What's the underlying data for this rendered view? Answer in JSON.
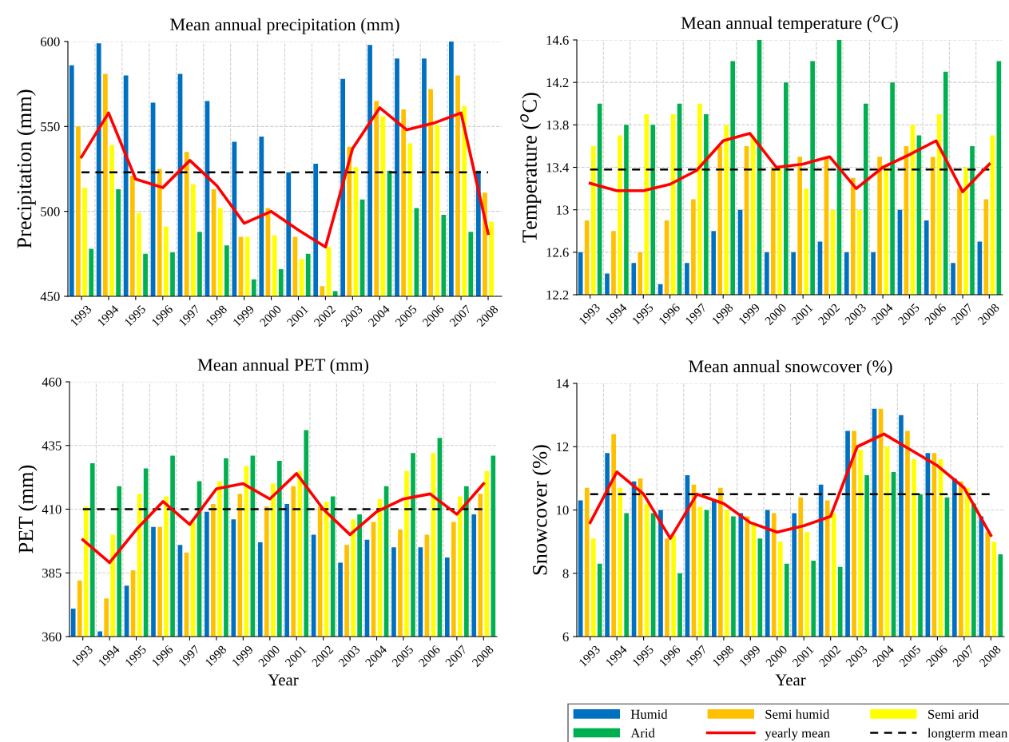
{
  "chart_data": [
    {
      "type": "bar",
      "title": "Mean annual precipitation (mm)",
      "ylabel": "Precipitation (mm)",
      "categories": [
        "1993",
        "1994",
        "1995",
        "1996",
        "1997",
        "1998",
        "1999",
        "2000",
        "2001",
        "2002",
        "2003",
        "2004",
        "2005",
        "2006",
        "2007",
        "2008"
      ],
      "ylim": [
        450,
        600
      ],
      "yticks": [
        450,
        500,
        550,
        600
      ],
      "grid": true,
      "series": [
        {
          "color": "#0070c0",
          "values": [
            586,
            599,
            580,
            564,
            581,
            565,
            541,
            544,
            523,
            528,
            578,
            598,
            590,
            590,
            600,
            524
          ]
        },
        {
          "color": "#ffc000",
          "values": [
            550,
            581,
            521,
            525,
            535,
            513,
            485,
            502,
            485,
            456,
            538,
            565,
            560,
            572,
            580,
            511
          ]
        },
        {
          "color": "#ffff00",
          "values": [
            514,
            539,
            499,
            491,
            516,
            502,
            485,
            486,
            472,
            479,
            526,
            556,
            540,
            551,
            562,
            494
          ]
        },
        {
          "color": "#00b050",
          "values": [
            478,
            513,
            475,
            476,
            488,
            480,
            460,
            466,
            475,
            453,
            507,
            524,
            502,
            498,
            488,
            null
          ]
        },
        {
          "type": "line",
          "color": "#ff0000",
          "values": [
            532,
            558,
            519,
            514,
            530,
            515,
            493,
            500,
            489,
            479,
            537,
            561,
            548,
            552,
            558,
            487
          ]
        }
      ],
      "ref_lines": [
        {
          "axis": "y",
          "value": 523,
          "color": "#000000",
          "line_style": "dashed"
        }
      ]
    },
    {
      "type": "bar",
      "title": "Mean annual temperature ($^{o}$C)",
      "ylabel": "Temperature ($^{o}$C)",
      "categories": [
        "1993",
        "1994",
        "1995",
        "1996",
        "1997",
        "1998",
        "1999",
        "2000",
        "2001",
        "2002",
        "2003",
        "2004",
        "2005",
        "2006",
        "2007",
        "2008"
      ],
      "ylim": [
        12.2,
        14.6
      ],
      "yticks": [
        12.2,
        12.6,
        13,
        13.4,
        13.8,
        14.2,
        14.6
      ],
      "grid": true,
      "series": [
        {
          "color": "#0070c0",
          "values": [
            12.6,
            12.4,
            12.5,
            12.3,
            12.5,
            12.8,
            13.0,
            12.6,
            12.6,
            12.7,
            12.6,
            12.6,
            13.0,
            12.9,
            12.5,
            12.7
          ]
        },
        {
          "color": "#ffc000",
          "values": [
            12.9,
            12.8,
            12.6,
            12.9,
            13.1,
            13.6,
            13.6,
            13.4,
            13.5,
            13.5,
            13.3,
            13.5,
            13.6,
            13.5,
            13.2,
            13.1
          ]
        },
        {
          "color": "#ffff00",
          "values": [
            13.6,
            13.7,
            13.9,
            13.9,
            14.0,
            13.8,
            13.7,
            13.4,
            13.2,
            13.0,
            13.0,
            13.4,
            13.8,
            13.9,
            13.4,
            13.7
          ]
        },
        {
          "color": "#00b050",
          "values": [
            14.0,
            13.8,
            13.8,
            14.0,
            13.9,
            14.4,
            14.6,
            14.2,
            14.4,
            14.6,
            14.0,
            14.2,
            13.7,
            14.3,
            13.6,
            14.4
          ]
        },
        {
          "type": "line",
          "color": "#ff0000",
          "values": [
            13.25,
            13.18,
            13.18,
            13.24,
            13.37,
            13.65,
            13.72,
            13.4,
            13.43,
            13.5,
            13.2,
            13.4,
            13.52,
            13.65,
            13.17,
            13.43
          ]
        }
      ],
      "ref_lines": [
        {
          "axis": "y",
          "value": 13.38,
          "color": "#000000",
          "line_style": "dashed"
        }
      ]
    },
    {
      "type": "bar",
      "title": "Mean annual PET (mm)",
      "ylabel": "PET (mm)",
      "xlabel": "Year",
      "categories": [
        "1993",
        "1994",
        "1995",
        "1996",
        "1997",
        "1998",
        "1999",
        "2000",
        "2001",
        "2002",
        "2003",
        "2004",
        "2005",
        "2006",
        "2007",
        "2008"
      ],
      "ylim": [
        360,
        460
      ],
      "yticks": [
        360,
        385,
        410,
        435,
        460
      ],
      "grid": true,
      "series": [
        {
          "color": "#0070c0",
          "values": [
            371,
            362,
            380,
            403,
            396,
            409,
            406,
            397,
            412,
            400,
            389,
            398,
            395,
            395,
            391,
            408
          ]
        },
        {
          "color": "#ffc000",
          "values": [
            382,
            375,
            386,
            403,
            393,
            412,
            416,
            411,
            419,
            411,
            396,
            405,
            402,
            400,
            405,
            416
          ]
        },
        {
          "color": "#ffff00",
          "values": [
            411,
            400,
            416,
            415,
            405,
            421,
            427,
            420,
            425,
            413,
            406,
            414,
            425,
            432,
            415,
            425
          ]
        },
        {
          "color": "#00b050",
          "values": [
            428,
            419,
            426,
            431,
            421,
            430,
            431,
            429,
            441,
            415,
            408,
            419,
            432,
            438,
            419,
            431
          ]
        },
        {
          "type": "line",
          "color": "#ff0000",
          "values": [
            398,
            389,
            402,
            413,
            404,
            418,
            420,
            414,
            424,
            410,
            400,
            409,
            414,
            416,
            408,
            420
          ]
        }
      ],
      "ref_lines": [
        {
          "axis": "y",
          "value": 410,
          "color": "#000000",
          "line_style": "dashed"
        }
      ]
    },
    {
      "type": "bar",
      "title": "Mean annual snowcover (%)",
      "ylabel": "Snowcover (%)",
      "xlabel": "Year",
      "categories": [
        "1993",
        "1994",
        "1995",
        "1996",
        "1997",
        "1998",
        "1999",
        "2000",
        "2001",
        "2002",
        "2003",
        "2004",
        "2005",
        "2006",
        "2007",
        "2008"
      ],
      "ylim": [
        6,
        14
      ],
      "yticks": [
        6,
        8,
        10,
        12,
        14
      ],
      "grid": true,
      "legend": "bottom",
      "series": [
        {
          "name": "Humid",
          "color": "#0070c0",
          "values": [
            10.3,
            11.8,
            10.9,
            10.0,
            11.1,
            10.3,
            9.9,
            10.0,
            9.9,
            10.8,
            12.5,
            13.2,
            13.0,
            11.8,
            11.0,
            9.8
          ]
        },
        {
          "name": "Semi humid",
          "color": "#ffc000",
          "values": [
            10.7,
            12.4,
            11.0,
            9.1,
            10.8,
            10.7,
            9.8,
            9.9,
            10.4,
            10.3,
            12.5,
            13.2,
            12.5,
            11.8,
            10.9,
            9.3
          ]
        },
        {
          "name": "Semi arid",
          "color": "#ffff00",
          "values": [
            9.1,
            10.7,
            10.2,
            9.2,
            10.1,
            10.0,
            9.6,
            9.0,
            9.3,
            9.9,
            11.9,
            12.0,
            11.6,
            11.6,
            10.7,
            9.0
          ]
        },
        {
          "name": "Arid",
          "color": "#00b050",
          "values": [
            8.3,
            9.9,
            9.9,
            8.0,
            10.0,
            9.8,
            9.1,
            8.3,
            8.4,
            8.2,
            11.1,
            11.2,
            10.5,
            10.4,
            10.2,
            8.6
          ]
        },
        {
          "name": "yearly mean",
          "type": "line",
          "color": "#ff0000",
          "values": [
            9.6,
            11.2,
            10.5,
            9.1,
            10.5,
            10.2,
            9.6,
            9.3,
            9.5,
            9.8,
            12.0,
            12.4,
            11.9,
            11.4,
            10.7,
            9.2
          ]
        }
      ],
      "ref_lines": [
        {
          "axis": "y",
          "value": 10.5,
          "label": "longterm mean",
          "color": "#000000",
          "line_style": "dashed"
        }
      ]
    }
  ]
}
